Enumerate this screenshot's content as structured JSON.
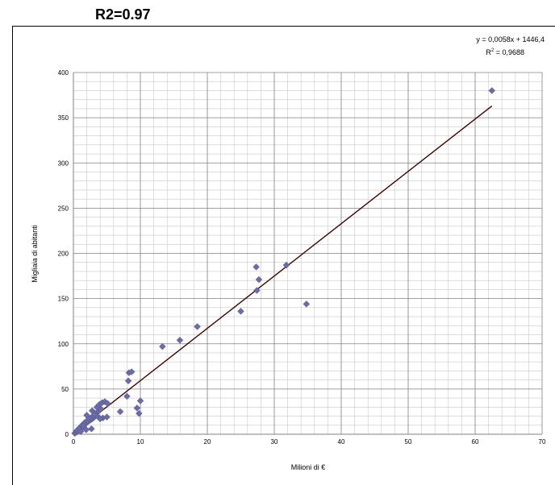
{
  "heading": "R2=0.97",
  "chart_data": {
    "type": "scatter",
    "title": "",
    "xlabel": "Milioni di €",
    "ylabel": "Migliaia di abitanti",
    "xlim": [
      0,
      70
    ],
    "ylim": [
      0,
      400
    ],
    "x_ticks": [
      0,
      10,
      20,
      30,
      40,
      50,
      60,
      70
    ],
    "y_ticks": [
      0,
      50,
      100,
      150,
      200,
      250,
      300,
      350,
      400
    ],
    "grid": true,
    "marker_color": "#6b6ba8",
    "trendline_color": "#400000",
    "equation_line1": "y = 0,0058x + 1446,4",
    "r2_label": "R",
    "r2_superscript": "2",
    "r2_value": " = 0,9688",
    "trendline": [
      [
        0,
        1.4
      ],
      [
        62.5,
        363
      ]
    ],
    "x": [
      0.2,
      0.4,
      0.6,
      0.8,
      1.0,
      1.2,
      1.4,
      1.6,
      1.8,
      2.0,
      2.2,
      2.4,
      2.6,
      2.8,
      3.0,
      0.5,
      0.9,
      1.3,
      1.7,
      2.1,
      2.5,
      2.9,
      3.3,
      3.7,
      4.1,
      1.5,
      2.3,
      3.1,
      3.5,
      3.9,
      4.3,
      4.7,
      5.1,
      2.0,
      2.8,
      3.6,
      4.4,
      1.1,
      1.9,
      2.7,
      3.2,
      4.0,
      5.0,
      7.0,
      8.0,
      8.3,
      8.7,
      8.2,
      9.5,
      9.8,
      10.0,
      13.3,
      15.9,
      18.5,
      25.0,
      27.3,
      27.4,
      27.7,
      31.8,
      34.8,
      62.5
    ],
    "y": [
      1,
      2,
      3,
      5,
      6,
      8,
      9,
      10,
      12,
      13,
      14,
      15,
      16,
      17,
      18,
      4,
      7,
      10,
      13,
      15,
      17,
      20,
      22,
      25,
      28,
      9,
      18,
      24,
      30,
      33,
      35,
      36,
      34,
      21,
      26,
      20,
      18,
      3,
      5,
      6,
      22,
      17,
      19,
      25,
      42,
      68,
      69,
      59,
      29,
      23,
      37,
      97,
      104,
      119,
      136,
      185,
      159,
      171,
      187,
      144,
      380
    ]
  }
}
